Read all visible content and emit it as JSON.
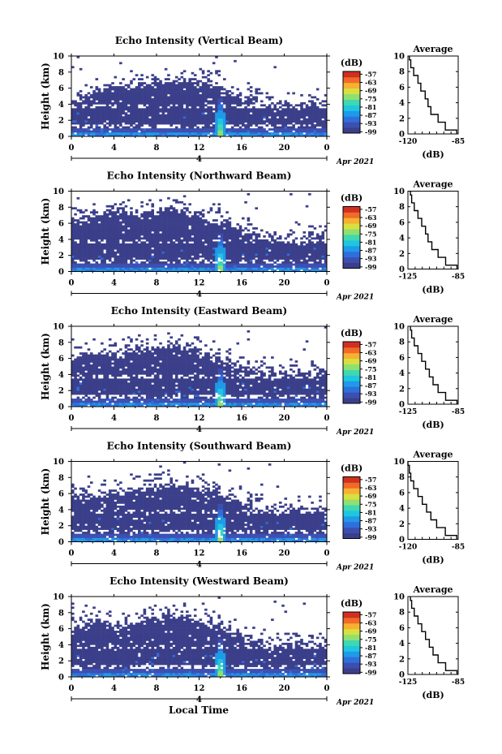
{
  "figure": {
    "xlabel_bottom": "Local Time",
    "date_label": "Apr 2021",
    "day_label": "4",
    "average_title": "Average",
    "unit_label": "(dB)",
    "ylabel": "Height (km)"
  },
  "chart_data": [
    {
      "type": "heatmap",
      "title": "Echo Intensity (Vertical Beam)",
      "xlabel": "Local Time",
      "ylabel": "Height (km)",
      "xlim": [
        0,
        24
      ],
      "ylim": [
        0,
        10
      ],
      "x_ticks": [
        "0",
        "4",
        "8",
        "12",
        "16",
        "20",
        "0"
      ],
      "y_ticks": [
        "0",
        "2",
        "4",
        "6",
        "8",
        "10"
      ],
      "colorbar": {
        "label": "(dB)",
        "ticks": [
          "-57",
          "-63",
          "-69",
          "-75",
          "-81",
          "-87",
          "-93",
          "-99"
        ],
        "range": [
          -100,
          -55
        ]
      },
      "layer_top_km": [
        4.6,
        5.0,
        5.6,
        6.0,
        6.2,
        6.0,
        6.4,
        6.6,
        6.8,
        7.0,
        7.0,
        6.8,
        6.6,
        6.2,
        5.6,
        5.0,
        4.6,
        4.2,
        4.0,
        3.9,
        3.9,
        3.9,
        4.0,
        4.0
      ],
      "plume_hour": 14.0,
      "average": {
        "title": "Average",
        "xlabel": "(dB)",
        "xlim": [
          -120,
          -85
        ],
        "x_ticks": [
          "-120",
          "-85"
        ],
        "height_km": [
          0,
          1,
          2,
          3,
          4,
          5,
          6,
          7,
          8,
          9,
          10
        ],
        "values_db": [
          -86,
          -94,
          -99,
          -104,
          -106,
          -108,
          -111,
          -113,
          -116,
          -118,
          -119
        ]
      }
    },
    {
      "type": "heatmap",
      "title": "Echo Intensity (Northward Beam)",
      "xlabel": "Local Time",
      "ylabel": "Height (km)",
      "xlim": [
        0,
        24
      ],
      "ylim": [
        0,
        10
      ],
      "x_ticks": [
        "0",
        "4",
        "8",
        "12",
        "16",
        "20",
        "0"
      ],
      "y_ticks": [
        "0",
        "2",
        "4",
        "6",
        "8",
        "10"
      ],
      "colorbar": {
        "label": "(dB)",
        "ticks": [
          "-57",
          "-63",
          "-69",
          "-75",
          "-81",
          "-87",
          "-93",
          "-99"
        ],
        "range": [
          -100,
          -55
        ]
      },
      "layer_top_km": [
        6.2,
        6.6,
        7.0,
        7.2,
        7.4,
        7.2,
        7.0,
        7.2,
        7.4,
        7.8,
        7.6,
        7.2,
        6.8,
        6.4,
        6.0,
        5.4,
        4.8,
        4.4,
        4.2,
        4.0,
        4.0,
        4.0,
        4.1,
        4.2
      ],
      "plume_hour": 14.0,
      "average": {
        "title": "Average",
        "xlabel": "(dB)",
        "xlim": [
          -125,
          -85
        ],
        "x_ticks": [
          "-125",
          "-85"
        ],
        "height_km": [
          0,
          1,
          2,
          3,
          4,
          5,
          6,
          7,
          8,
          9,
          10
        ],
        "values_db": [
          -86,
          -95,
          -101,
          -106,
          -109,
          -111,
          -114,
          -117,
          -120,
          -122,
          -123
        ]
      }
    },
    {
      "type": "heatmap",
      "title": "Echo Intensity (Eastward Beam)",
      "xlabel": "Local Time",
      "ylabel": "Height (km)",
      "xlim": [
        0,
        24
      ],
      "ylim": [
        0,
        10
      ],
      "x_ticks": [
        "0",
        "4",
        "8",
        "12",
        "16",
        "20",
        "0"
      ],
      "y_ticks": [
        "0",
        "2",
        "4",
        "6",
        "8",
        "10"
      ],
      "colorbar": {
        "label": "(dB)",
        "ticks": [
          "-57",
          "-63",
          "-69",
          "-75",
          "-81",
          "-87",
          "-93",
          "-99"
        ],
        "range": [
          -100,
          -55
        ]
      },
      "layer_top_km": [
        6.0,
        6.4,
        6.8,
        6.6,
        6.4,
        6.8,
        7.0,
        7.2,
        7.4,
        7.6,
        7.4,
        7.0,
        6.6,
        6.2,
        5.8,
        5.2,
        4.6,
        4.3,
        4.1,
        4.0,
        4.0,
        4.0,
        4.1,
        4.1
      ],
      "plume_hour": 14.0,
      "average": {
        "title": "Average",
        "xlabel": "(dB)",
        "xlim": [
          -125,
          -85
        ],
        "x_ticks": [
          "-125",
          "-85"
        ],
        "height_km": [
          0,
          1,
          2,
          3,
          4,
          5,
          6,
          7,
          8,
          9,
          10
        ],
        "values_db": [
          -86,
          -95,
          -101,
          -105,
          -108,
          -111,
          -114,
          -117,
          -120,
          -122,
          -123
        ]
      }
    },
    {
      "type": "heatmap",
      "title": "Echo Intensity (Southward Beam)",
      "xlabel": "Local Time",
      "ylabel": "Height (km)",
      "xlim": [
        0,
        24
      ],
      "ylim": [
        0,
        10
      ],
      "x_ticks": [
        "0",
        "4",
        "8",
        "12",
        "16",
        "20",
        "0"
      ],
      "y_ticks": [
        "0",
        "2",
        "4",
        "6",
        "8",
        "10"
      ],
      "colorbar": {
        "label": "(dB)",
        "ticks": [
          "-57",
          "-63",
          "-69",
          "-75",
          "-81",
          "-87",
          "-93",
          "-99"
        ],
        "range": [
          -100,
          -55
        ]
      },
      "layer_top_km": [
        5.6,
        5.8,
        6.0,
        5.8,
        6.0,
        6.4,
        6.6,
        6.8,
        7.0,
        7.2,
        7.0,
        6.8,
        6.4,
        6.0,
        5.6,
        5.0,
        4.6,
        4.2,
        4.0,
        3.9,
        3.9,
        3.9,
        4.0,
        4.0
      ],
      "plume_hour": 14.0,
      "average": {
        "title": "Average",
        "xlabel": "(dB)",
        "xlim": [
          -120,
          -85
        ],
        "x_ticks": [
          "-120",
          "-85"
        ],
        "height_km": [
          0,
          1,
          2,
          3,
          4,
          5,
          6,
          7,
          8,
          9,
          10
        ],
        "values_db": [
          -86,
          -94,
          -100,
          -104,
          -107,
          -110,
          -113,
          -116,
          -118,
          -119,
          -120
        ]
      }
    },
    {
      "type": "heatmap",
      "title": "Echo Intensity (Westward Beam)",
      "xlabel": "Local Time",
      "ylabel": "Height (km)",
      "xlim": [
        0,
        24
      ],
      "ylim": [
        0,
        10
      ],
      "x_ticks": [
        "0",
        "4",
        "8",
        "12",
        "16",
        "20",
        "0"
      ],
      "y_ticks": [
        "0",
        "2",
        "4",
        "6",
        "8",
        "10"
      ],
      "colorbar": {
        "label": "(dB)",
        "ticks": [
          "-57",
          "-63",
          "-69",
          "-75",
          "-81",
          "-87",
          "-93",
          "-99"
        ],
        "range": [
          -100,
          -55
        ]
      },
      "layer_top_km": [
        6.2,
        6.6,
        6.8,
        6.4,
        6.2,
        6.6,
        7.0,
        7.2,
        7.4,
        7.6,
        7.4,
        7.0,
        6.6,
        6.2,
        5.8,
        5.2,
        4.6,
        4.3,
        4.1,
        4.0,
        4.0,
        4.0,
        4.1,
        4.1
      ],
      "plume_hour": 14.0,
      "average": {
        "title": "Average",
        "xlabel": "(dB)",
        "xlim": [
          -125,
          -85
        ],
        "x_ticks": [
          "-125",
          "-85"
        ],
        "height_km": [
          0,
          1,
          2,
          3,
          4,
          5,
          6,
          7,
          8,
          9,
          10
        ],
        "values_db": [
          -86,
          -95,
          -101,
          -105,
          -108,
          -111,
          -114,
          -117,
          -120,
          -122,
          -123
        ]
      }
    }
  ],
  "colormap": [
    "#3b3f8a",
    "#3c4fb0",
    "#2f6fdc",
    "#1f9ae8",
    "#1fc6e0",
    "#3fd8b0",
    "#8fe070",
    "#d8e040",
    "#f8b030",
    "#f06a28",
    "#d03020"
  ]
}
